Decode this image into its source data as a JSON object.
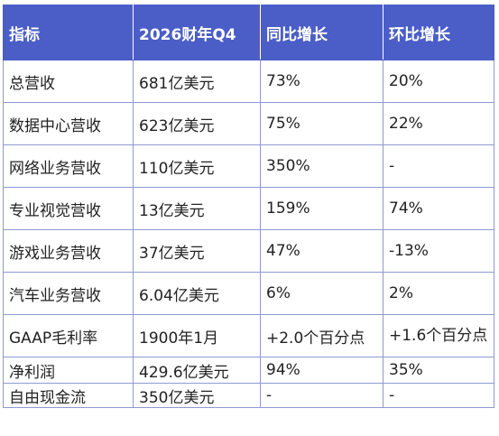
{
  "table": {
    "headers": [
      "指标",
      "2026财年Q4",
      "同比增长",
      "环比增长"
    ],
    "rows": [
      [
        "总营收",
        "681亿美元",
        "73%",
        "20%"
      ],
      [
        "数据中心营收",
        "623亿美元",
        "75%",
        "22%"
      ],
      [
        "网络业务营收",
        "110亿美元",
        "350%",
        "-"
      ],
      [
        "专业视觉营收",
        "13亿美元",
        "159%",
        "74%"
      ],
      [
        "游戏业务营收",
        "37亿美元",
        "47%",
        "-13%"
      ],
      [
        "汽车业务营收",
        "6.04亿美元",
        "6%",
        "2%"
      ],
      [
        "GAAP毛利率",
        "1900年1月",
        "+2.0个百分点",
        "+1.6个百分点"
      ],
      [
        "净利润",
        "429.6亿美元",
        "94%",
        "35%"
      ],
      [
        "自由现金流",
        "350亿美元",
        "-",
        "-"
      ]
    ]
  },
  "colors": {
    "header_bg": "#4b5ec7",
    "header_text": "#ffffff",
    "border": "#8e9ad1"
  }
}
